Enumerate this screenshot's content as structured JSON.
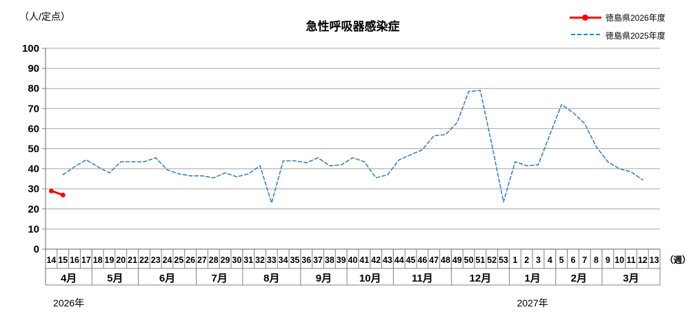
{
  "header": {
    "unit_label": "（人/定点）",
    "title": "急性呼吸器感染症"
  },
  "legend": [
    {
      "label": "徳島県2026年度",
      "color": "#FF0000",
      "line_style": "solid-with-marker"
    },
    {
      "label": "徳島県2025年度",
      "color": "#3D7EBB",
      "line_style": "dashed"
    }
  ],
  "chart_data": {
    "type": "line",
    "title": "急性呼吸器感染症",
    "ylabel": "（人/定点）",
    "xlabel": "（週）",
    "ylim": [
      0,
      100
    ],
    "ytick_step": 10,
    "grid": true,
    "grid_color": "#A6A6A6",
    "axis_color": "#808080",
    "background_color": "#FFFFFF",
    "legend_position": "top-right",
    "categories": [
      "14",
      "15",
      "16",
      "17",
      "18",
      "19",
      "20",
      "21",
      "22",
      "23",
      "24",
      "25",
      "26",
      "27",
      "28",
      "29",
      "30",
      "31",
      "32",
      "33",
      "34",
      "35",
      "36",
      "37",
      "38",
      "39",
      "40",
      "41",
      "42",
      "43",
      "44",
      "45",
      "46",
      "47",
      "48",
      "49",
      "50",
      "51",
      "52",
      "53",
      "1",
      "2",
      "3",
      "4",
      "5",
      "6",
      "7",
      "8",
      "9",
      "10",
      "11",
      "12",
      "13"
    ],
    "months": [
      {
        "label": "4月",
        "span": 4
      },
      {
        "label": "5月",
        "span": 4
      },
      {
        "label": "6月",
        "span": 5
      },
      {
        "label": "7月",
        "span": 4
      },
      {
        "label": "8月",
        "span": 5
      },
      {
        "label": "9月",
        "span": 4
      },
      {
        "label": "10月",
        "span": 4
      },
      {
        "label": "11月",
        "span": 5
      },
      {
        "label": "12月",
        "span": 5
      },
      {
        "label": "1月",
        "span": 4
      },
      {
        "label": "2月",
        "span": 4
      },
      {
        "label": "3月",
        "span": 5
      }
    ],
    "year_labels": [
      {
        "text": "2026年",
        "month_index": 0
      },
      {
        "text": "2027年",
        "month_index": 9
      }
    ],
    "series": [
      {
        "name": "徳島県2026年度",
        "color": "#FF0000",
        "style": "solid",
        "marker": "circle",
        "values": [
          29,
          27,
          null,
          null,
          null,
          null,
          null,
          null,
          null,
          null,
          null,
          null,
          null,
          null,
          null,
          null,
          null,
          null,
          null,
          null,
          null,
          null,
          null,
          null,
          null,
          null,
          null,
          null,
          null,
          null,
          null,
          null,
          null,
          null,
          null,
          null,
          null,
          null,
          null,
          null,
          null,
          null,
          null,
          null,
          null,
          null,
          null,
          null,
          null,
          null,
          null,
          null,
          null
        ]
      },
      {
        "name": "徳島県2025年度",
        "color": "#3D7EBB",
        "style": "dashed",
        "marker": "none",
        "values": [
          null,
          37,
          41,
          44.5,
          41,
          38,
          43.5,
          43.5,
          43.5,
          45.5,
          39.5,
          37.5,
          36.5,
          36.5,
          35.5,
          38,
          36,
          37.5,
          41.5,
          23,
          44,
          44,
          43,
          45.5,
          41.5,
          42,
          45.5,
          43.5,
          35.5,
          37,
          44.5,
          47,
          49.5,
          56.5,
          57,
          63,
          78.5,
          79,
          52,
          23.5,
          43.5,
          41.5,
          42,
          57,
          72,
          68,
          62.5,
          51,
          43.5,
          40,
          38.5,
          34.5,
          null
        ]
      }
    ]
  }
}
